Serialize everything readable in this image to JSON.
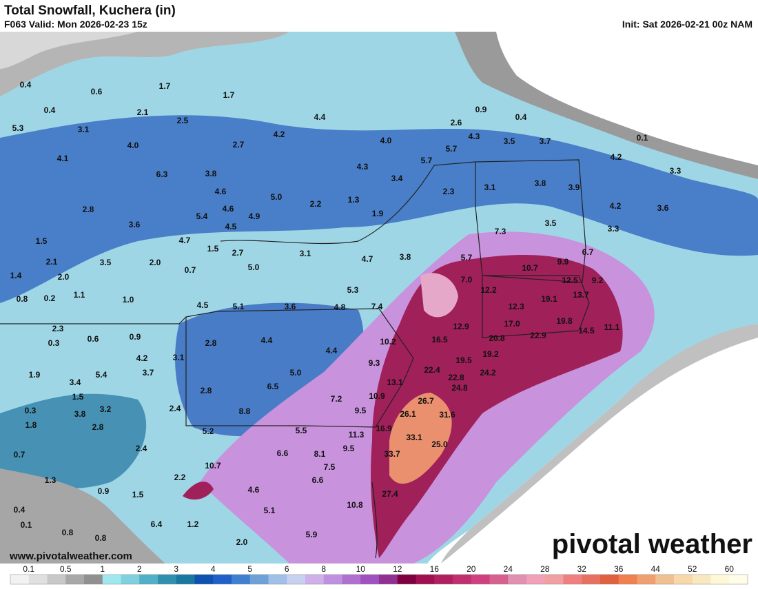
{
  "header": {
    "title": "Total Snowfall, Kuchera (in)",
    "valid": "F063 Valid: Mon 2026-02-23 15z",
    "init": "Init: Sat 2026-02-21 00z NAM"
  },
  "map": {
    "labels": [
      "0.4",
      "0.6",
      "1.7",
      "1.7",
      "0.4",
      "2.1",
      "5.3",
      "3.1",
      "2.5",
      "4.4",
      "0.9",
      "0.4",
      "2.6",
      "4.3",
      "3.5",
      "3.7",
      "4.0",
      "4.2",
      "2.7",
      "4.0",
      "5.7",
      "0.1",
      "4.1",
      "4.2",
      "6.3",
      "3.8",
      "4.3",
      "5.7",
      "3.3",
      "3.4",
      "3.1",
      "2.3",
      "3.8",
      "3.9",
      "4.6",
      "5.0",
      "2.2",
      "1.3",
      "4.2",
      "3.6",
      "2.8",
      "4.6",
      "5.4",
      "4.9",
      "1.9",
      "3.6",
      "4.5",
      "3.5",
      "3.3",
      "1.5",
      "7.3",
      "4.7",
      "1.5",
      "2.7",
      "3.1",
      "4.7",
      "3.8",
      "5.7",
      "6.7",
      "2.1",
      "3.5",
      "2.0",
      "10.7",
      "9.9",
      "0.7",
      "5.0",
      "1.4",
      "2.0",
      "7.0",
      "12.5",
      "9.2",
      "0.8",
      "0.2",
      "1.1",
      "1.0",
      "5.3",
      "12.2",
      "13.7",
      "19.1",
      "4.5",
      "5.1",
      "3.6",
      "4.8",
      "7.4",
      "12.3",
      "12.9",
      "17.0",
      "19.8",
      "14.5",
      "11.1",
      "2.3",
      "0.3",
      "0.6",
      "0.9",
      "16.5",
      "20.8",
      "22.9",
      "10.2",
      "2.8",
      "4.4",
      "4.4",
      "4.2",
      "3.1",
      "19.2",
      "19.5",
      "9.3",
      "5.4",
      "3.7",
      "5.0",
      "22.4",
      "24.2",
      "1.9",
      "13.1",
      "22.8",
      "3.4",
      "6.5",
      "24.8",
      "1.5",
      "2.8",
      "7.2",
      "10.9",
      "26.7",
      "0.3",
      "3.2",
      "2.4",
      "8.8",
      "9.5",
      "26.1",
      "31.6",
      "3.8",
      "1.8",
      "2.8",
      "5.2",
      "5.5",
      "16.9",
      "11.3",
      "33.1",
      "25.0",
      "2.4",
      "9.5",
      "6.6",
      "8.1",
      "0.7",
      "33.7",
      "10.7",
      "7.5",
      "1.3",
      "2.2",
      "6.6",
      "0.9",
      "1.5",
      "4.6",
      "27.4",
      "0.4",
      "10.8",
      "5.1",
      "0.1",
      "6.4",
      "1.2",
      "0.8",
      "0.8",
      "5.9",
      "2.0"
    ]
  },
  "colorbar": {
    "ticks": [
      "0.1",
      "0.5",
      "1",
      "2",
      "3",
      "4",
      "5",
      "6",
      "8",
      "10",
      "12",
      "16",
      "20",
      "24",
      "28",
      "32",
      "36",
      "44",
      "52",
      "60"
    ],
    "colors": [
      "#f2f2f2",
      "#e0e0e0",
      "#c8c8c8",
      "#a8a8a8",
      "#909090",
      "#a0e8f0",
      "#80d0e0",
      "#50b0c8",
      "#3090b0",
      "#1878a0",
      "#1050b0",
      "#2060c8",
      "#4080d0",
      "#70a0d8",
      "#a0c0e8",
      "#c8d0f0",
      "#d0b0e8",
      "#c090e0",
      "#b070d0",
      "#a050c0",
      "#903090",
      "#800040",
      "#a01050",
      "#b02060",
      "#c03070",
      "#d04080",
      "#d86090",
      "#e090b0",
      "#f0a0b8",
      "#f0a0a0",
      "#f08080",
      "#e87060",
      "#e06040",
      "#f08050",
      "#f0a070",
      "#f0c090",
      "#f8d8a8",
      "#f8e8c0",
      "#fff8d8",
      "#fffce8"
    ]
  },
  "footer": {
    "url": "www.pivotalweather.com",
    "logo": "pivotal weather"
  }
}
